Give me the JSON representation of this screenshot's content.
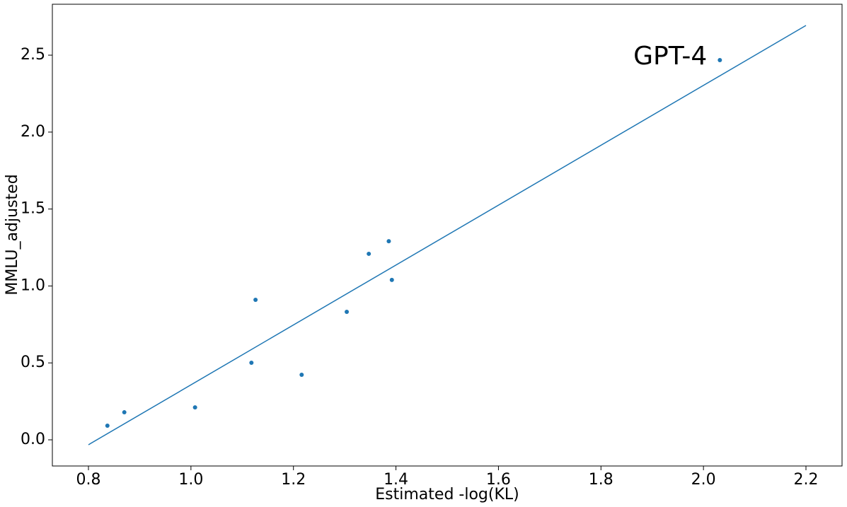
{
  "chart_data": {
    "type": "scatter",
    "x_label": "Estimated -log(KL)",
    "y_label": "MMLU_adjusted",
    "annotation": "GPT-4",
    "points": {
      "color": "#1f77b4",
      "x": [
        0.837,
        0.87,
        1.008,
        1.118,
        1.126,
        1.216,
        1.304,
        1.347,
        1.386,
        1.392,
        2.032
      ],
      "values": [
        0.092,
        0.179,
        0.211,
        0.501,
        0.91,
        0.423,
        0.832,
        1.209,
        1.291,
        1.039,
        2.468
      ]
    },
    "fit_line": {
      "color": "#1f77b4",
      "x": [
        0.8,
        2.2
      ],
      "values": [
        -0.032,
        2.693
      ]
    },
    "xlim": [
      0.7296,
      2.2704
    ],
    "ylim": [
      -0.17,
      2.831
    ],
    "xticks": [
      0.8,
      {
        "value": 1,
        "label": "1.0"
      },
      1.2,
      1.4,
      1.6,
      1.8,
      {
        "value": 2,
        "label": "2.0"
      },
      2.2
    ],
    "yticks": [
      {
        "value": 0,
        "label": "0.0"
      },
      0.5,
      {
        "value": 1,
        "label": "1.0"
      },
      1.5,
      {
        "value": 2,
        "label": "2.0"
      },
      2.5
    ],
    "grid": false
  }
}
